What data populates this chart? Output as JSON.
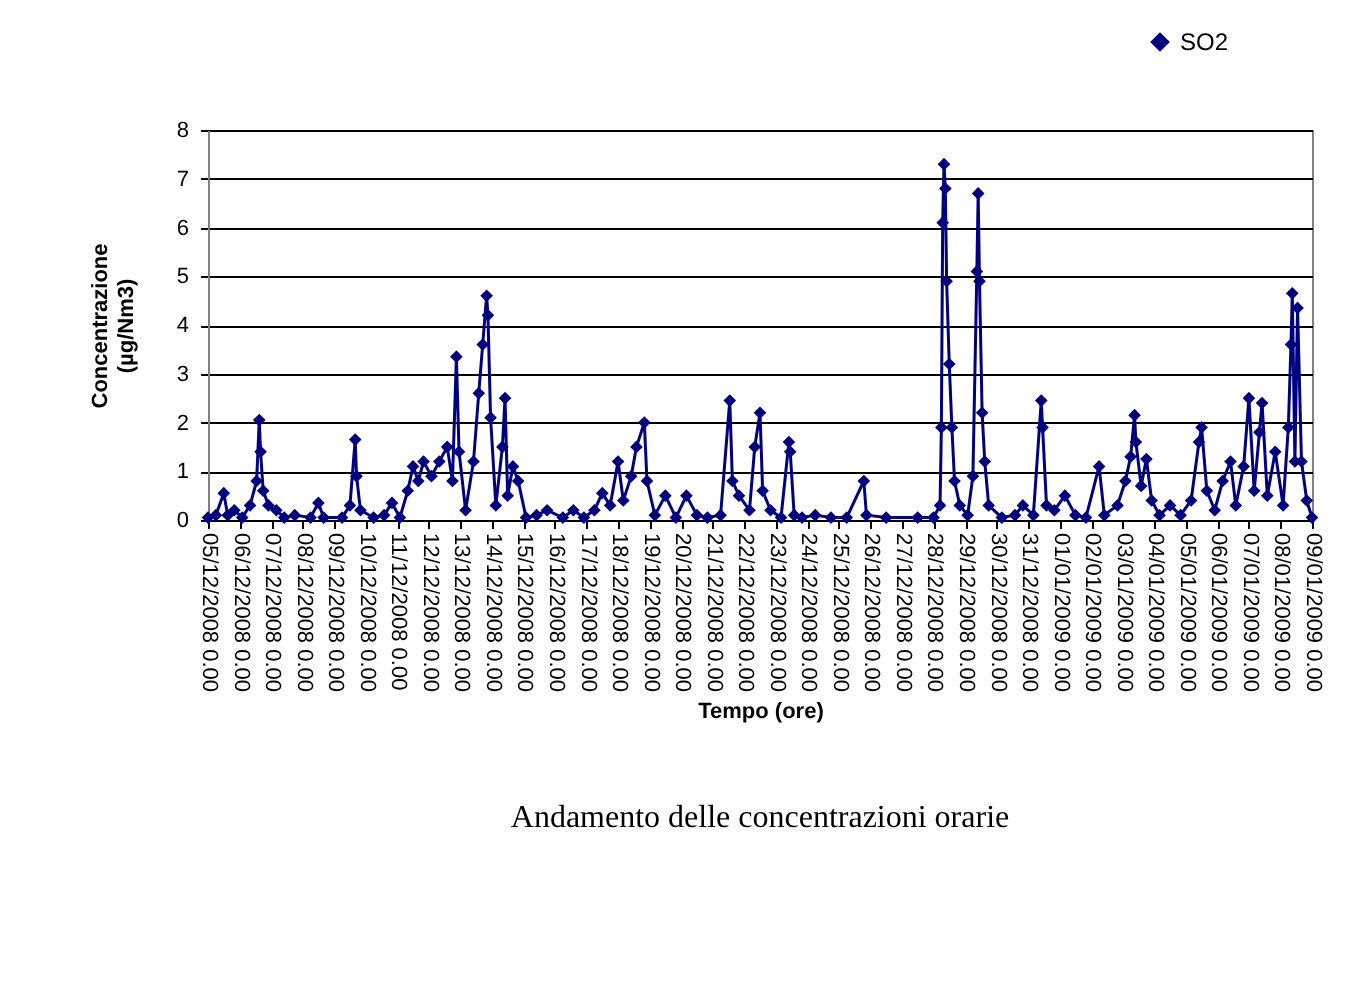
{
  "chart_data": {
    "type": "line",
    "xlabel": "Tempo (ore)",
    "ylabel": "Concentrazione (µg/Nm3)",
    "annotations": [
      "Andamento delle concentrazioni orarie"
    ],
    "xlim": [
      "2008-12-05T00:00",
      "2009-01-09T00:00"
    ],
    "xticks": [
      {
        "value": "2008-12-05T00:00",
        "label": "05/12/2008 0.00"
      },
      {
        "value": "2008-12-06T00:00",
        "label": "06/12/2008 0.00"
      },
      {
        "value": "2008-12-07T00:00",
        "label": "07/12/2008 0.00"
      },
      {
        "value": "2008-12-08T00:00",
        "label": "08/12/2008 0.00"
      },
      {
        "value": "2008-12-09T00:00",
        "label": "09/12/2008 0.00"
      },
      {
        "value": "2008-12-10T00:00",
        "label": "10/12/2008 0.00"
      },
      {
        "value": "2008-12-11T00:00",
        "label": "11/12/2008 0.00"
      },
      {
        "value": "2008-12-12T00:00",
        "label": "12/12/2008 0.00"
      },
      {
        "value": "2008-12-13T00:00",
        "label": "13/12/2008 0.00"
      },
      {
        "value": "2008-12-14T00:00",
        "label": "14/12/2008 0.00"
      },
      {
        "value": "2008-12-15T00:00",
        "label": "15/12/2008 0.00"
      },
      {
        "value": "2008-12-16T00:00",
        "label": "16/12/2008 0.00"
      },
      {
        "value": "2008-12-17T00:00",
        "label": "17/12/2008 0.00"
      },
      {
        "value": "2008-12-18T00:00",
        "label": "18/12/2008 0.00"
      },
      {
        "value": "2008-12-19T00:00",
        "label": "19/12/2008 0.00"
      },
      {
        "value": "2008-12-20T00:00",
        "label": "20/12/2008 0.00"
      },
      {
        "value": "2008-12-21T00:00",
        "label": "21/12/2008 0.00"
      },
      {
        "value": "2008-12-22T00:00",
        "label": "22/12/2008 0.00"
      },
      {
        "value": "2008-12-23T00:00",
        "label": "23/12/2008 0.00"
      },
      {
        "value": "2008-12-24T00:00",
        "label": "24/12/2008 0.00"
      },
      {
        "value": "2008-12-25T00:00",
        "label": "25/12/2008 0.00"
      },
      {
        "value": "2008-12-26T00:00",
        "label": "26/12/2008 0.00"
      },
      {
        "value": "2008-12-27T00:00",
        "label": "27/12/2008 0.00"
      },
      {
        "value": "2008-12-28T00:00",
        "label": "28/12/2008 0.00"
      },
      {
        "value": "2008-12-29T00:00",
        "label": "29/12/2008 0.00"
      },
      {
        "value": "2008-12-30T00:00",
        "label": "30/12/2008 0.00"
      },
      {
        "value": "2008-12-31T00:00",
        "label": "31/12/2008 0.00"
      },
      {
        "value": "2009-01-01T00:00",
        "label": "01/01/2009 0.00"
      },
      {
        "value": "2009-01-02T00:00",
        "label": "02/01/2009 0.00"
      },
      {
        "value": "2009-01-03T00:00",
        "label": "03/01/2009 0.00"
      },
      {
        "value": "2009-01-04T00:00",
        "label": "04/01/2009 0.00"
      },
      {
        "value": "2009-01-05T00:00",
        "label": "05/01/2009 0.00"
      },
      {
        "value": "2009-01-06T00:00",
        "label": "06/01/2009 0.00"
      },
      {
        "value": "2009-01-07T00:00",
        "label": "07/01/2009 0.00"
      },
      {
        "value": "2009-01-08T00:00",
        "label": "08/01/2009 0.00"
      },
      {
        "value": "2009-01-09T00:00",
        "label": "09/01/2009 0.00"
      }
    ],
    "ylim": [
      0,
      8
    ],
    "yticks": [
      0,
      1,
      2,
      3,
      4,
      5,
      6,
      7,
      8
    ],
    "grid": "y",
    "legend": "top right",
    "marker": "diamond",
    "line_style": "solid",
    "series": [
      {
        "name": "SO2",
        "color": "#000080",
        "x": [
          "2008-12-05T00:00",
          "2008-12-05T06:00",
          "2008-12-05T12:00",
          "2008-12-05T15:00",
          "2008-12-05T20:00",
          "2008-12-06T02:00",
          "2008-12-06T08:00",
          "2008-12-06T13:00",
          "2008-12-06T15:00",
          "2008-12-06T16:00",
          "2008-12-06T18:00",
          "2008-12-06T22:00",
          "2008-12-07T04:00",
          "2008-12-07T10:00",
          "2008-12-07T18:00",
          "2008-12-08T06:00",
          "2008-12-08T12:00",
          "2008-12-08T16:00",
          "2008-12-09T06:00",
          "2008-12-09T12:00",
          "2008-12-09T16:00",
          "2008-12-09T17:00",
          "2008-12-09T20:00",
          "2008-12-10T06:00",
          "2008-12-10T14:00",
          "2008-12-10T20:00",
          "2008-12-11T02:00",
          "2008-12-11T08:00",
          "2008-12-11T12:00",
          "2008-12-11T16:00",
          "2008-12-11T20:00",
          "2008-12-12T02:00",
          "2008-12-12T08:00",
          "2008-12-12T14:00",
          "2008-12-12T18:00",
          "2008-12-12T21:00",
          "2008-12-12T23:00",
          "2008-12-13T04:00",
          "2008-12-13T10:00",
          "2008-12-13T14:00",
          "2008-12-13T17:00",
          "2008-12-13T20:00",
          "2008-12-13T21:00",
          "2008-12-13T23:00",
          "2008-12-14T03:00",
          "2008-12-14T08:00",
          "2008-12-14T10:00",
          "2008-12-14T12:00",
          "2008-12-14T16:00",
          "2008-12-14T20:00",
          "2008-12-15T02:00",
          "2008-12-15T10:00",
          "2008-12-15T18:00",
          "2008-12-16T06:00",
          "2008-12-16T14:00",
          "2008-12-16T22:00",
          "2008-12-17T06:00",
          "2008-12-17T12:00",
          "2008-12-17T18:00",
          "2008-12-18T00:00",
          "2008-12-18T04:00",
          "2008-12-18T10:00",
          "2008-12-18T14:00",
          "2008-12-18T20:00",
          "2008-12-18T22:00",
          "2008-12-19T04:00",
          "2008-12-19T12:00",
          "2008-12-19T20:00",
          "2008-12-20T04:00",
          "2008-12-20T12:00",
          "2008-12-20T20:00",
          "2008-12-21T06:00",
          "2008-12-21T13:00",
          "2008-12-21T15:00",
          "2008-12-21T20:00",
          "2008-12-22T04:00",
          "2008-12-22T08:00",
          "2008-12-22T12:00",
          "2008-12-22T14:00",
          "2008-12-22T20:00",
          "2008-12-23T04:00",
          "2008-12-23T10:00",
          "2008-12-23T11:00",
          "2008-12-23T14:00",
          "2008-12-23T20:00",
          "2008-12-24T06:00",
          "2008-12-24T18:00",
          "2008-12-25T06:00",
          "2008-12-25T19:00",
          "2008-12-25T21:00",
          "2008-12-26T12:00",
          "2008-12-27T12:00",
          "2008-12-28T00:00",
          "2008-12-28T05:00",
          "2008-12-28T06:00",
          "2008-12-28T07:00",
          "2008-12-28T08:00",
          "2008-12-28T09:00",
          "2008-12-28T10:00",
          "2008-12-28T12:00",
          "2008-12-28T14:00",
          "2008-12-28T16:00",
          "2008-12-28T20:00",
          "2008-12-29T02:00",
          "2008-12-29T06:00",
          "2008-12-29T09:00",
          "2008-12-29T10:00",
          "2008-12-29T11:00",
          "2008-12-29T13:00",
          "2008-12-29T15:00",
          "2008-12-29T18:00",
          "2008-12-30T04:00",
          "2008-12-30T14:00",
          "2008-12-30T20:00",
          "2008-12-31T04:00",
          "2008-12-31T10:00",
          "2008-12-31T11:00",
          "2008-12-31T14:00",
          "2008-12-31T20:00",
          "2009-01-01T04:00",
          "2009-01-01T12:00",
          "2009-01-01T20:00",
          "2009-01-02T06:00",
          "2009-01-02T10:00",
          "2009-01-02T20:00",
          "2009-01-03T02:00",
          "2009-01-03T06:00",
          "2009-01-03T09:00",
          "2009-01-03T10:00",
          "2009-01-03T14:00",
          "2009-01-03T18:00",
          "2009-01-03T22:00",
          "2009-01-04T04:00",
          "2009-01-04T12:00",
          "2009-01-04T20:00",
          "2009-01-05T04:00",
          "2009-01-05T10:00",
          "2009-01-05T12:00",
          "2009-01-05T16:00",
          "2009-01-05T22:00",
          "2009-01-06T04:00",
          "2009-01-06T10:00",
          "2009-01-06T14:00",
          "2009-01-06T20:00",
          "2009-01-07T00:00",
          "2009-01-07T04:00",
          "2009-01-07T08:00",
          "2009-01-07T10:00",
          "2009-01-07T14:00",
          "2009-01-07T20:00",
          "2009-01-08T02:00",
          "2009-01-08T06:00",
          "2009-01-08T08:00",
          "2009-01-08T09:00",
          "2009-01-08T11:00",
          "2009-01-08T13:00",
          "2009-01-08T16:00",
          "2009-01-08T20:00",
          "2009-01-09T00:00"
        ],
        "values": [
          0.05,
          0.1,
          0.55,
          0.1,
          0.2,
          0.05,
          0.3,
          0.8,
          2.05,
          1.4,
          0.6,
          0.3,
          0.2,
          0.05,
          0.1,
          0.05,
          0.35,
          0.05,
          0.05,
          0.3,
          1.65,
          0.9,
          0.2,
          0.05,
          0.1,
          0.35,
          0.05,
          0.6,
          1.1,
          0.8,
          1.2,
          0.9,
          1.2,
          1.5,
          0.8,
          3.35,
          1.4,
          0.2,
          1.2,
          2.6,
          3.6,
          4.6,
          4.2,
          2.1,
          0.3,
          1.5,
          2.5,
          0.5,
          1.1,
          0.8,
          0.05,
          0.1,
          0.2,
          0.05,
          0.2,
          0.05,
          0.2,
          0.55,
          0.3,
          1.2,
          0.4,
          0.9,
          1.5,
          2.0,
          0.8,
          0.1,
          0.5,
          0.05,
          0.5,
          0.1,
          0.05,
          0.1,
          2.45,
          0.8,
          0.5,
          0.2,
          1.5,
          2.2,
          0.6,
          0.2,
          0.05,
          1.6,
          1.4,
          0.1,
          0.05,
          0.1,
          0.05,
          0.05,
          0.8,
          0.1,
          0.05,
          0.05,
          0.05,
          0.3,
          1.9,
          6.1,
          7.3,
          6.8,
          4.9,
          3.2,
          1.9,
          0.8,
          0.3,
          0.1,
          0.9,
          5.1,
          6.7,
          4.9,
          2.2,
          1.2,
          0.3,
          0.05,
          0.1,
          0.3,
          0.1,
          2.45,
          1.9,
          0.3,
          0.2,
          0.5,
          0.1,
          0.05,
          1.1,
          0.1,
          0.3,
          0.8,
          1.3,
          2.15,
          1.6,
          0.7,
          1.25,
          0.4,
          0.1,
          0.3,
          0.1,
          0.4,
          1.6,
          1.9,
          0.6,
          0.2,
          0.8,
          1.2,
          0.3,
          1.1,
          2.5,
          0.6,
          1.8,
          2.4,
          0.5,
          1.4,
          0.3,
          1.9,
          3.6,
          4.65,
          1.2,
          4.35,
          1.2,
          0.4,
          0.05
        ]
      }
    ]
  }
}
